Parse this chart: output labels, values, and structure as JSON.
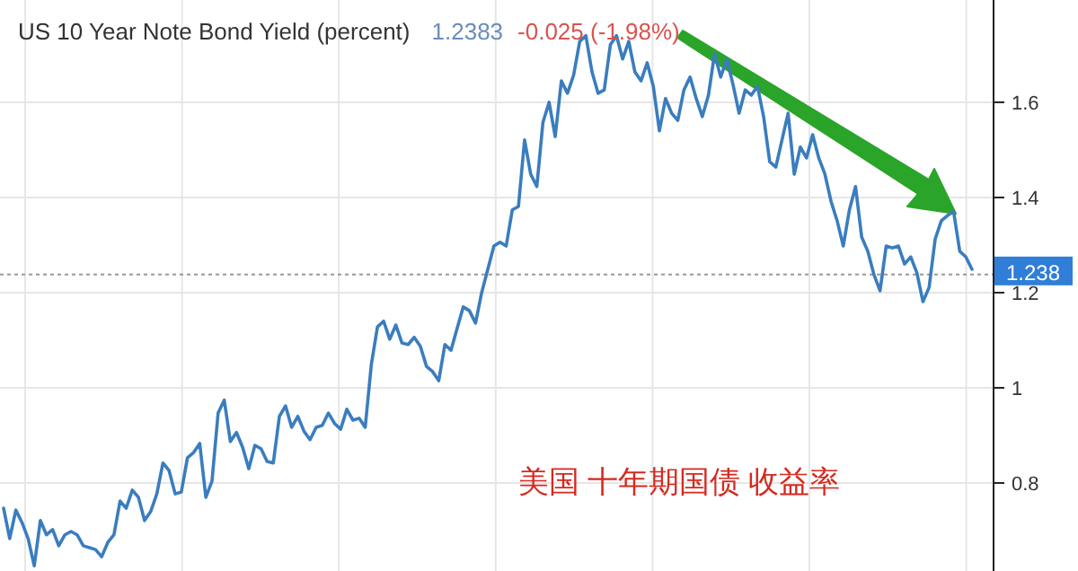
{
  "chart_data": {
    "type": "line",
    "title": "US 10 Year Note Bond Yield (percent)",
    "annotations": [
      "1.2383",
      "-0.025 (-1.98%)",
      "美国 十年期国债 收益率"
    ],
    "categories": [
      null,
      null,
      null,
      null,
      null,
      null,
      null,
      null,
      null,
      null,
      null,
      null,
      null,
      null,
      null,
      null,
      null,
      null,
      null,
      null,
      null,
      null,
      null,
      null,
      null,
      null,
      null,
      null,
      null,
      null,
      null,
      null,
      null,
      null,
      null,
      null,
      null,
      null,
      null,
      null,
      null,
      null,
      null,
      null,
      null,
      null,
      null,
      null,
      null,
      null,
      null,
      null,
      null,
      null,
      null,
      null,
      null,
      null,
      null,
      null,
      null,
      null,
      null,
      null,
      null,
      null,
      null,
      null,
      null,
      null,
      null,
      null,
      null,
      null,
      null,
      null,
      null,
      null,
      null,
      null,
      null,
      null,
      null,
      null,
      null,
      null,
      null,
      null,
      null,
      null,
      null,
      null,
      null,
      null,
      null,
      null,
      null,
      null,
      null,
      null,
      null,
      null,
      null,
      null,
      null,
      null,
      null,
      null,
      null,
      null,
      null,
      null,
      null,
      null,
      null,
      null,
      null,
      null,
      null,
      null,
      null,
      null,
      null,
      null,
      null,
      null,
      null,
      null,
      null,
      null,
      null,
      null,
      null,
      null,
      null,
      null,
      null,
      null,
      null,
      null,
      null,
      null,
      null,
      null,
      null,
      null,
      null,
      null,
      null,
      null,
      null,
      null,
      null,
      null,
      null,
      null,
      null,
      null,
      null
    ],
    "series": [
      {
        "color": "#3a7dbf",
        "values": [
          0.747,
          0.683,
          0.743,
          0.717,
          0.683,
          0.626,
          0.721,
          0.691,
          0.702,
          0.668,
          0.691,
          0.698,
          0.691,
          0.668,
          0.664,
          0.66,
          0.645,
          0.675,
          0.691,
          0.762,
          0.747,
          0.785,
          0.77,
          0.721,
          0.74,
          0.777,
          0.842,
          0.826,
          0.777,
          0.781,
          0.853,
          0.864,
          0.883,
          0.77,
          0.804,
          0.947,
          0.974,
          0.887,
          0.906,
          0.875,
          0.83,
          0.879,
          0.872,
          0.845,
          0.842,
          0.94,
          0.962,
          0.917,
          0.94,
          0.909,
          0.891,
          0.917,
          0.921,
          0.947,
          0.925,
          0.913,
          0.955,
          0.932,
          0.936,
          0.917,
          1.049,
          1.128,
          1.14,
          1.102,
          1.132,
          1.094,
          1.091,
          1.106,
          1.087,
          1.045,
          1.034,
          1.015,
          1.091,
          1.079,
          1.125,
          1.17,
          1.162,
          1.136,
          1.2,
          1.249,
          1.298,
          1.306,
          1.298,
          1.374,
          1.381,
          1.521,
          1.449,
          1.423,
          1.558,
          1.6,
          1.528,
          1.645,
          1.619,
          1.657,
          1.728,
          1.74,
          1.664,
          1.619,
          1.626,
          1.721,
          1.74,
          1.691,
          1.728,
          1.664,
          1.645,
          1.683,
          1.634,
          1.54,
          1.608,
          1.577,
          1.562,
          1.626,
          1.653,
          1.608,
          1.57,
          1.615,
          1.702,
          1.653,
          1.691,
          1.638,
          1.577,
          1.626,
          1.615,
          1.634,
          1.57,
          1.475,
          1.464,
          1.521,
          1.577,
          1.449,
          1.506,
          1.483,
          1.532,
          1.483,
          1.449,
          1.392,
          1.351,
          1.298,
          1.374,
          1.423,
          1.317,
          1.287,
          1.238,
          1.204,
          1.298,
          1.294,
          1.298,
          1.26,
          1.275,
          1.242,
          1.181,
          1.211,
          1.313,
          1.351,
          1.362,
          1.37,
          1.287,
          1.275,
          1.249
        ]
      }
    ],
    "ylim": [
      0.615,
      1.815
    ],
    "yticks": [
      0.8,
      1,
      1.2,
      1.4,
      1.6
    ],
    "grid": true,
    "tick_labels": "y",
    "ref_lines": [
      {
        "axis": "y",
        "value": 1.238,
        "label": "1.238",
        "color": "#999999",
        "line_style": "dotted"
      }
    ]
  }
}
